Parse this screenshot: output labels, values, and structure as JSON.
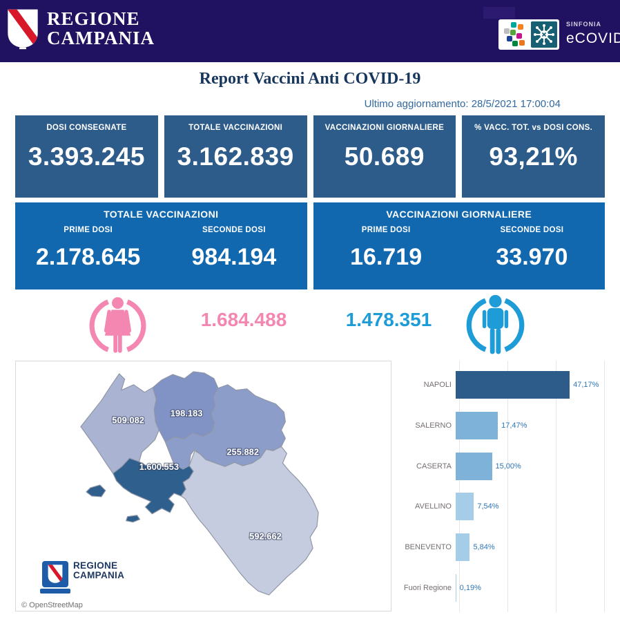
{
  "header": {
    "brand_line1": "REGIONE",
    "brand_line2": "CAMPANIA",
    "sinfonia": "SINFONIA",
    "ecovid": "eCOVID"
  },
  "report": {
    "title": "Report Vaccini Anti COVID-19",
    "last_update": "Ultimo aggiornamento: 28/5/2021 17:00:04"
  },
  "kpi_cards": [
    {
      "label": "DOSI CONSEGNATE",
      "value": "3.393.245"
    },
    {
      "label": "TOTALE VACCINAZIONI",
      "value": "3.162.839"
    },
    {
      "label": "VACCINAZIONI GIORNALIERE",
      "value": "50.689"
    },
    {
      "label": "% VACC. TOT. vs DOSI CONS.",
      "value": "93,21%"
    }
  ],
  "dose_cards": [
    {
      "title": "TOTALE VACCINAZIONI",
      "col1": {
        "label": "PRIME DOSI",
        "value": "2.178.645"
      },
      "col2": {
        "label": "SECONDE DOSI",
        "value": "984.194"
      }
    },
    {
      "title": "VACCINAZIONI GIORNALIERE",
      "col1": {
        "label": "PRIME DOSI",
        "value": "16.719"
      },
      "col2": {
        "label": "SECONDE DOSI",
        "value": "33.970"
      }
    }
  ],
  "gender": {
    "female_value": "1.684.488",
    "male_value": "1.478.351",
    "female_color": "#F487B1",
    "male_color": "#1E9CD7"
  },
  "map": {
    "attribution": "© OpenStreetMap",
    "watermark_line1": "REGIONE",
    "watermark_line2": "CAMPANIA",
    "regions": [
      {
        "name": "Caserta",
        "value_label": "509.082",
        "color": "#AAB3D2"
      },
      {
        "name": "Benevento",
        "value_label": "198.183",
        "color": "#8192C4"
      },
      {
        "name": "Avellino",
        "value_label": "255.882",
        "color": "#8C9DC9"
      },
      {
        "name": "Salerno",
        "value_label": "592.662",
        "color": "#C6CCE0"
      },
      {
        "name": "Napoli",
        "value_label": "1.600.553",
        "color": "#2F5F8C"
      }
    ]
  },
  "chart_data": [
    {
      "type": "bar",
      "orientation": "horizontal",
      "title": "",
      "xlabel": "",
      "ylabel": "",
      "categories": [
        "NAPOLI",
        "SALERNO",
        "CASERTA",
        "AVELLINO",
        "BENEVENTO",
        "Fuori Regione"
      ],
      "values": [
        47.17,
        17.47,
        15.0,
        7.54,
        5.84,
        0.19
      ],
      "value_labels": [
        "47,17%",
        "17,47%",
        "15,00%",
        "7,54%",
        "5,84%",
        "0,19%"
      ],
      "bar_colors": [
        "#2E5C8A",
        "#7FB2D9",
        "#7FB2D9",
        "#A5CDE8",
        "#A5CDE8",
        "#A5CDE8"
      ],
      "xlim": [
        0,
        60
      ],
      "grid": true,
      "gridline_step_pct": 20,
      "legend": "none"
    },
    {
      "type": "heatmap",
      "subtype": "choropleth",
      "title": "",
      "categories": [
        "Caserta",
        "Benevento",
        "Avellino",
        "Salerno",
        "Napoli"
      ],
      "values": [
        509082,
        198183,
        255882,
        592662,
        1600553
      ],
      "value_labels": [
        "509.082",
        "198.183",
        "255.882",
        "592.662",
        "1.600.553"
      ]
    }
  ]
}
